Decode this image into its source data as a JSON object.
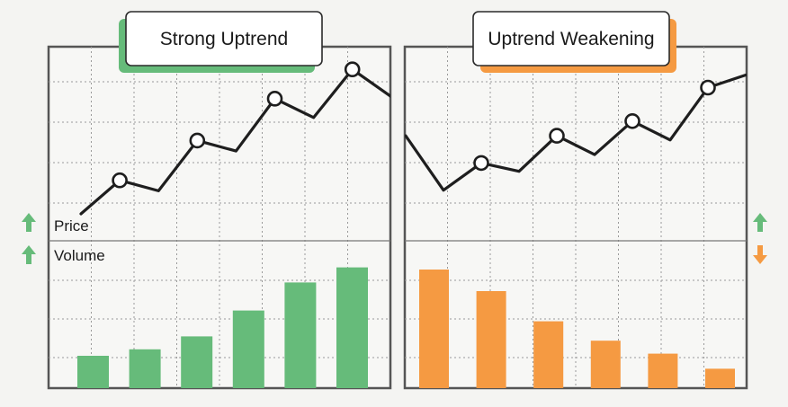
{
  "colors": {
    "green": "#66bb7a",
    "orange": "#f59a42",
    "line": "#1e1e1e"
  },
  "labels": {
    "price": "Price",
    "volume": "Volume"
  },
  "chart_data": [
    {
      "type": "line+bar",
      "title": "Strong Uptrend",
      "accent": "#66bb7a",
      "indicators": [
        {
          "label": "Price",
          "direction": "up",
          "icon": "arrow-up-icon",
          "color": "#66bb7a"
        },
        {
          "label": "Volume",
          "direction": "up",
          "icon": "arrow-up-icon",
          "color": "#66bb7a"
        }
      ],
      "price": {
        "x": [
          0,
          1,
          2,
          3,
          4,
          5,
          6,
          7,
          8
        ],
        "y": [
          0.0,
          1.6,
          1.1,
          3.5,
          3.0,
          5.5,
          4.6,
          6.9,
          5.6
        ],
        "marked_points": [
          1,
          3,
          5,
          7
        ]
      },
      "volume": {
        "values": [
          1.5,
          1.8,
          2.4,
          3.6,
          4.9,
          5.6
        ],
        "ylim": [
          0,
          6.5
        ]
      },
      "grid": true
    },
    {
      "type": "line+bar",
      "title": "Uptrend Weakening",
      "accent": "#f59a42",
      "indicators": [
        {
          "label": "Price",
          "direction": "up",
          "icon": "arrow-up-icon",
          "color": "#66bb7a"
        },
        {
          "label": "Volume",
          "direction": "down",
          "icon": "arrow-down-icon",
          "color": "#f59a42"
        }
      ],
      "price": {
        "x": [
          0,
          1,
          2,
          3,
          4,
          5,
          6,
          7,
          8,
          9
        ],
        "y": [
          3.0,
          0.4,
          1.7,
          1.3,
          3.0,
          2.1,
          3.7,
          2.8,
          5.3,
          5.9
        ],
        "marked_points": [
          2,
          4,
          6,
          8
        ]
      },
      "volume": {
        "values": [
          5.5,
          4.5,
          3.1,
          2.2,
          1.6,
          0.9
        ],
        "ylim": [
          0,
          6.5
        ]
      },
      "grid": true
    }
  ]
}
